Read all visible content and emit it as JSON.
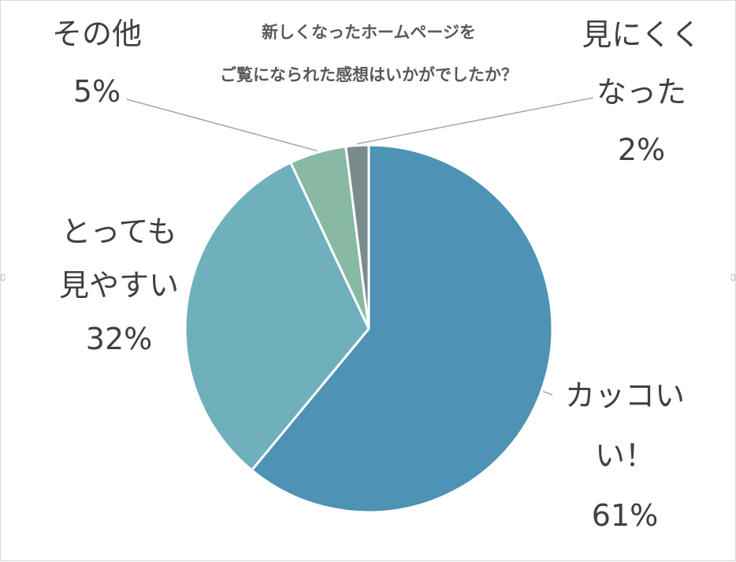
{
  "chart_data": {
    "type": "pie",
    "title": [
      "新しくなったホームページを",
      "ご覧になられた感想はいかがでしたか？"
    ],
    "slices": [
      {
        "name": "カッコいい！",
        "value": 61,
        "percent_label": "61%",
        "label_lines": [
          "カッコい",
          "い！"
        ],
        "color": "#4e92b5"
      },
      {
        "name": "とっても見やすい",
        "value": 32,
        "percent_label": "32%",
        "label_lines": [
          "とっても",
          "見やすい"
        ],
        "color": "#70b0bc"
      },
      {
        "name": "その他",
        "value": 5,
        "percent_label": "5%",
        "label_lines": [
          "その他"
        ],
        "color": "#87b9a5"
      },
      {
        "name": "見にくくなった",
        "value": 2,
        "percent_label": "2%",
        "label_lines": [
          "見にくく",
          "なった"
        ],
        "color": "#7a8b8b"
      }
    ],
    "start_angle": "12 o'clock",
    "direction": "clockwise",
    "legend": "none"
  },
  "colors": {
    "slice_border": "#ffffff",
    "leader_line": "#a6a6a6",
    "title": "#595959",
    "label": "#404040",
    "frame_border": "#d9d9d9"
  }
}
